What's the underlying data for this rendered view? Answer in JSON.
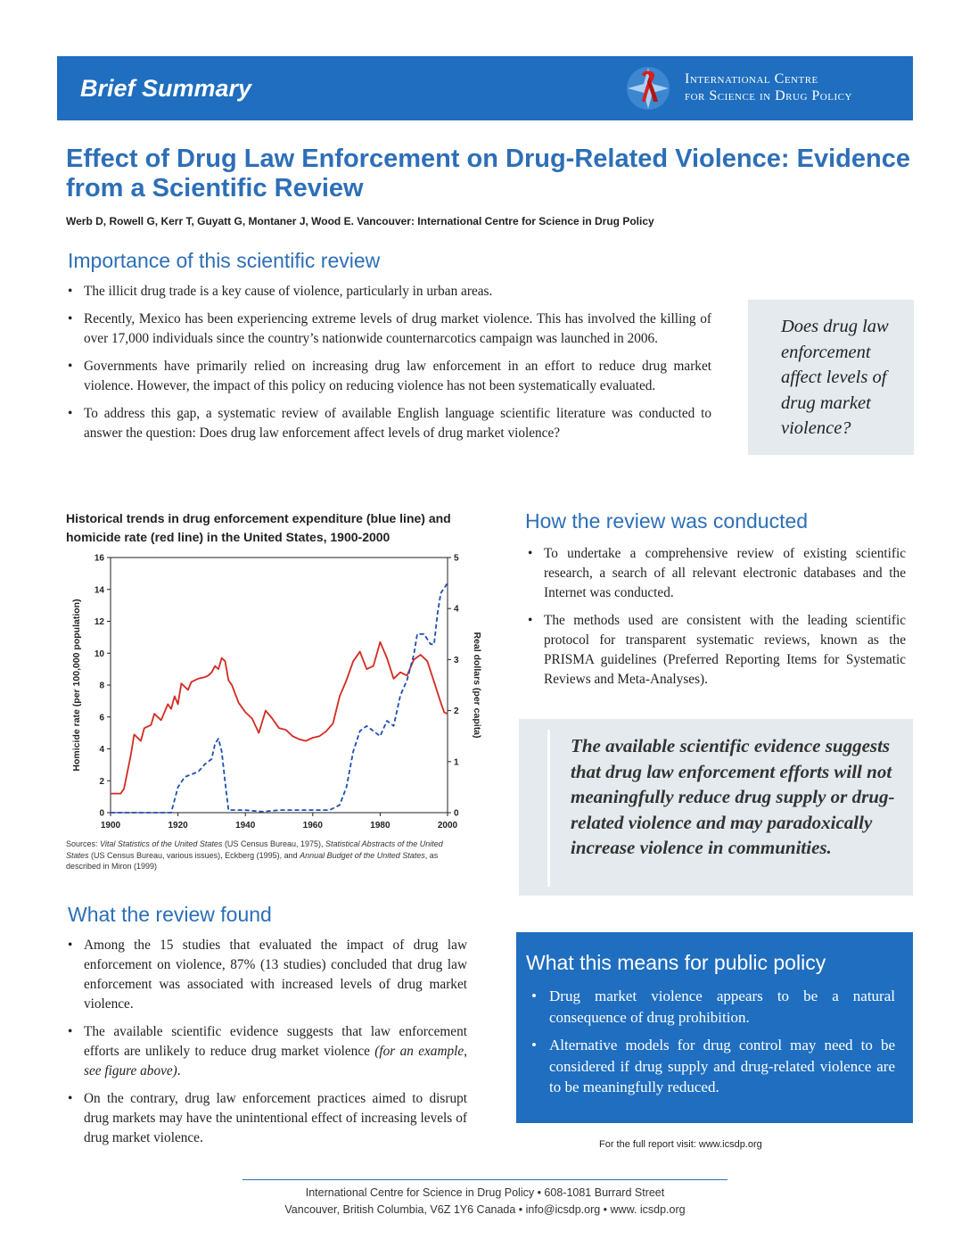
{
  "banner": {
    "title": "Brief Summary",
    "org_line1": "International Centre",
    "org_line2": "for Science in Drug Policy"
  },
  "header": {
    "title": "Effect of Drug Law Enforcement on Drug-Related Violence: Evidence from a Scientific Review",
    "authors": "Werb D, Rowell G, Kerr T, Guyatt G, Montaner J, Wood E.  Vancouver: International Centre for Science in Drug Policy"
  },
  "importance": {
    "heading": "Importance of this scientific review",
    "bullets": [
      "The illicit drug trade is a key cause of violence, particularly in urban areas.",
      "Recently, Mexico has been experiencing extreme levels of drug market violence. This has involved the killing of over 17,000 individuals since the country’s nationwide counternarcotics campaign was launched in 2006.",
      "Governments have primarily relied on increasing drug law enforcement in an effort to reduce drug market violence. However, the impact of this policy on reducing violence has not been systematically evaluated.",
      "To address this gap, a systematic review of available English language scientific literature was conducted to answer the question: Does drug law enforcement affect levels of drug market violence?"
    ]
  },
  "question_callout": "Does drug law enforcement affect levels of drug market violence?",
  "figure": {
    "title": "Historical trends in drug enforcement expenditure (blue line) and homicide rate (red line) in the United States, 1900-2000",
    "sources_html": "Sources: <i>Vital Statistics of the United States</i> (US Census Bureau, 1975), <i>Statistical Abstracts of the United States</i> (US Census Bureau, various issues), Eckberg (1995), and <i>Annual Budget of the United States</i>, as described in Miron (1999)"
  },
  "chart_data": {
    "type": "line",
    "title": "Historical trends in drug enforcement expenditure (blue line) and homicide rate (red line) in the United States, 1900-2000",
    "xlabel": "",
    "ylabel": "Homicide rate (per 100,000 population)",
    "y2label": "Real dollars (per capita)",
    "xlim": [
      1900,
      2000
    ],
    "ylim": [
      0,
      16
    ],
    "y2lim": [
      0,
      5
    ],
    "x_ticks": [
      1900,
      1920,
      1940,
      1960,
      1980,
      2000
    ],
    "y_ticks": [
      0,
      2,
      4,
      6,
      8,
      10,
      12,
      14,
      16
    ],
    "y2_ticks": [
      0,
      1,
      2,
      3,
      4,
      5
    ],
    "series": [
      {
        "color": "#d42a20",
        "style": "solid",
        "axis": "left",
        "points": [
          [
            1900,
            1.2
          ],
          [
            1903,
            1.2
          ],
          [
            1904,
            1.5
          ],
          [
            1906,
            3.6
          ],
          [
            1907,
            4.9
          ],
          [
            1909,
            4.5
          ],
          [
            1910,
            5.3
          ],
          [
            1912,
            5.5
          ],
          [
            1913,
            6.2
          ],
          [
            1915,
            5.8
          ],
          [
            1917,
            6.8
          ],
          [
            1918,
            6.5
          ],
          [
            1919,
            7.3
          ],
          [
            1920,
            6.8
          ],
          [
            1921,
            8.1
          ],
          [
            1923,
            7.7
          ],
          [
            1924,
            8.2
          ],
          [
            1926,
            8.4
          ],
          [
            1928,
            8.5
          ],
          [
            1929,
            8.6
          ],
          [
            1930,
            8.8
          ],
          [
            1931,
            9.2
          ],
          [
            1932,
            9.0
          ],
          [
            1933,
            9.7
          ],
          [
            1934,
            9.5
          ],
          [
            1935,
            8.3
          ],
          [
            1936,
            8.0
          ],
          [
            1938,
            6.9
          ],
          [
            1940,
            6.3
          ],
          [
            1942,
            5.9
          ],
          [
            1944,
            5.0
          ],
          [
            1945,
            5.7
          ],
          [
            1946,
            6.4
          ],
          [
            1948,
            5.9
          ],
          [
            1950,
            5.3
          ],
          [
            1952,
            5.2
          ],
          [
            1954,
            4.8
          ],
          [
            1956,
            4.6
          ],
          [
            1958,
            4.5
          ],
          [
            1960,
            4.7
          ],
          [
            1962,
            4.8
          ],
          [
            1964,
            5.1
          ],
          [
            1966,
            5.6
          ],
          [
            1968,
            7.3
          ],
          [
            1970,
            8.3
          ],
          [
            1972,
            9.5
          ],
          [
            1974,
            10.1
          ],
          [
            1976,
            9.0
          ],
          [
            1978,
            9.2
          ],
          [
            1980,
            10.7
          ],
          [
            1982,
            9.7
          ],
          [
            1984,
            8.4
          ],
          [
            1986,
            8.8
          ],
          [
            1988,
            8.6
          ],
          [
            1990,
            9.6
          ],
          [
            1992,
            9.9
          ],
          [
            1994,
            9.5
          ],
          [
            1996,
            8.2
          ],
          [
            1998,
            6.9
          ],
          [
            1999,
            6.3
          ],
          [
            2000,
            6.2
          ]
        ]
      },
      {
        "color": "#1f4fb3",
        "style": "dashed",
        "axis": "right",
        "points": [
          [
            1900,
            0
          ],
          [
            1918,
            0
          ],
          [
            1920,
            0.5
          ],
          [
            1922,
            0.7
          ],
          [
            1924,
            0.75
          ],
          [
            1926,
            0.8
          ],
          [
            1928,
            0.95
          ],
          [
            1930,
            1.05
          ],
          [
            1931,
            1.35
          ],
          [
            1932,
            1.45
          ],
          [
            1933,
            1.2
          ],
          [
            1934,
            0.6
          ],
          [
            1935,
            0.05
          ],
          [
            1940,
            0.05
          ],
          [
            1945,
            0.02
          ],
          [
            1950,
            0.05
          ],
          [
            1955,
            0.05
          ],
          [
            1960,
            0.05
          ],
          [
            1965,
            0.05
          ],
          [
            1968,
            0.15
          ],
          [
            1970,
            0.5
          ],
          [
            1972,
            1.2
          ],
          [
            1974,
            1.6
          ],
          [
            1976,
            1.7
          ],
          [
            1978,
            1.6
          ],
          [
            1980,
            1.5
          ],
          [
            1982,
            1.8
          ],
          [
            1984,
            1.7
          ],
          [
            1986,
            2.3
          ],
          [
            1988,
            2.6
          ],
          [
            1990,
            3.1
          ],
          [
            1991,
            3.5
          ],
          [
            1993,
            3.5
          ],
          [
            1995,
            3.3
          ],
          [
            1996,
            3.3
          ],
          [
            1997,
            3.9
          ],
          [
            1998,
            4.3
          ],
          [
            1999,
            4.4
          ],
          [
            2000,
            4.5
          ]
        ]
      }
    ]
  },
  "how": {
    "heading": "How the review was conducted",
    "bullets": [
      "To undertake a comprehensive review of existing scientific research, a search of all relevant electronic databases and the Internet was conducted.",
      "The methods used are consistent with the leading scientific protocol for transparent systematic reviews, known as the PRISMA guidelines (Preferred Reporting Items for Systematic Reviews and Meta-Analyses)."
    ]
  },
  "evidence_callout": "The available scientific evidence suggests that drug law enforcement efforts will not meaningfully reduce drug supply or drug-related violence and may paradoxically increase violence in communities.",
  "found": {
    "heading": "What the review found",
    "bullets_html": [
      "Among the 15 studies that evaluated the impact of drug law enforcement on violence, 87% (13 studies) concluded that drug law enforcement was associated with increased levels of drug market violence.",
      "The available scientific evidence suggests that law enforcement efforts are unlikely to reduce drug market violence <i>(for an example, see figure above)</i>.",
      "On the contrary, drug law enforcement practices aimed to disrupt drug markets may have the unintentional effect of increasing levels of drug market violence."
    ]
  },
  "policy": {
    "heading": "What this means for public policy",
    "bullets": [
      "Drug market violence appears to be a natural consequence of drug prohibition.",
      "Alternative models for drug control may need to be considered if drug supply and drug-related violence are to be meaningfully reduced."
    ]
  },
  "footer": {
    "full_report": "For the full report visit: www.icsdp.org",
    "line1": "International Centre for Science in Drug Policy • 608-1081 Burrard Street",
    "line2": "Vancouver,  British Columbia,  V6Z 1Y6  Canada • info@icsdp.org • www. icsdp.org"
  },
  "colors": {
    "banner": "#1f6ebf",
    "heading": "#2d6fb7",
    "callout_bg": "#e4eaee",
    "homicide_line": "#d42a20",
    "expenditure_line": "#1f4fb3"
  }
}
